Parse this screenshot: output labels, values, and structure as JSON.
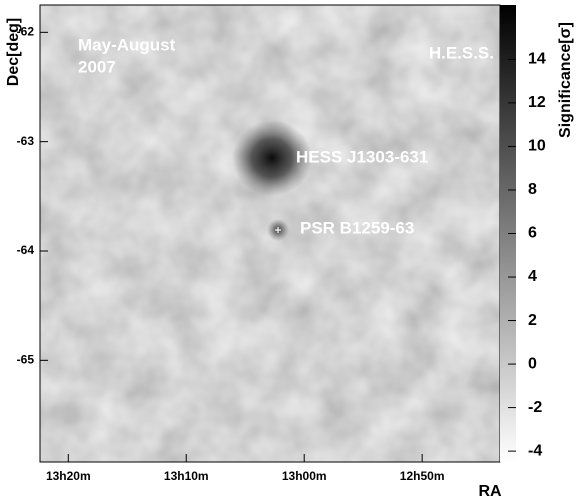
{
  "chart_data": {
    "type": "heatmap",
    "xlabel": "RA",
    "ylabel": "Dec[deg]",
    "colorbar_label": "Significance[σ]",
    "xlim": [
      802.4,
      763.4
    ],
    "xticks": [
      {
        "value": 800,
        "label": "13h20m"
      },
      {
        "value": 790,
        "label": "13h10m"
      },
      {
        "value": 780,
        "label": "13h00m"
      },
      {
        "value": 770,
        "label": "12h50m"
      }
    ],
    "ylim": [
      -65.93,
      -61.75
    ],
    "yticks": [
      -62,
      -63,
      -64,
      -65
    ],
    "clim": [
      -4.5,
      16.5
    ],
    "cticks": [
      -4,
      -2,
      0,
      2,
      4,
      6,
      8,
      10,
      12,
      14
    ],
    "annotations": {
      "period": [
        "May-August",
        "2007"
      ],
      "instrument": "H.E.S.S.",
      "source": "HESS J1303-631",
      "pulsar": "PSR B1259-63"
    }
  }
}
